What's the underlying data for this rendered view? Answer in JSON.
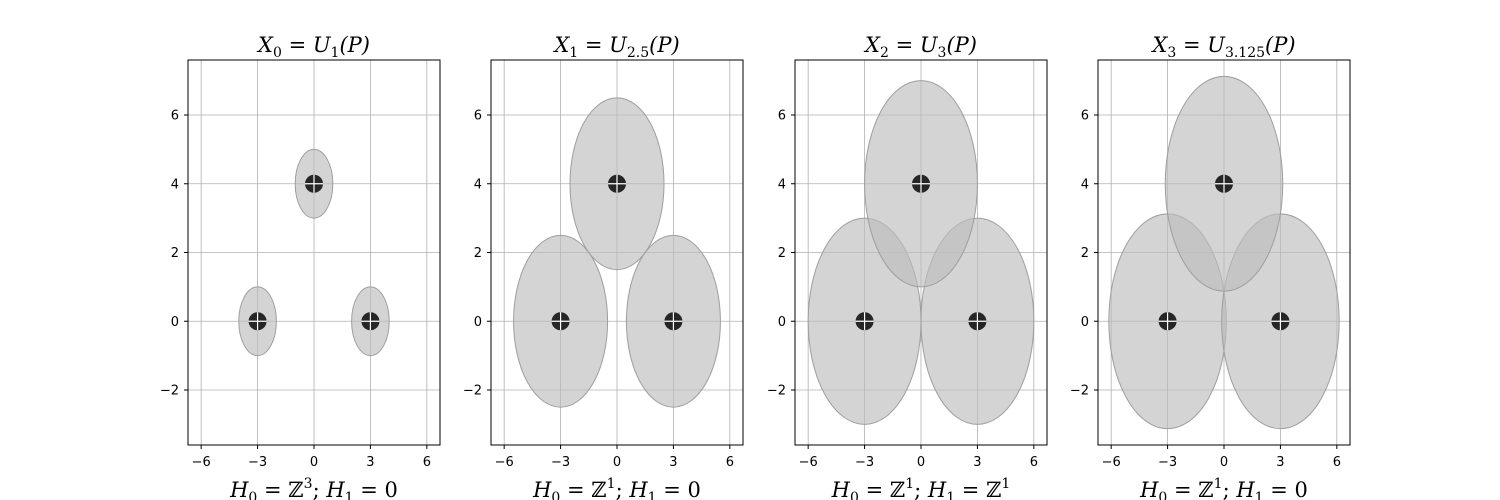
{
  "chart_data": [
    {
      "type": "scatter",
      "title": {
        "var": "X",
        "var_sub": "0",
        "eq": " = ",
        "fn": "U",
        "fn_sub": "1",
        "arg": "(P)"
      },
      "footer": {
        "h0_label": "H",
        "h0_sub": "0",
        "h0_eq": " = ",
        "h0_ring": "ℤ",
        "h0_sup": "3",
        "sep": "; ",
        "h1_label": "H",
        "h1_sub": "1",
        "h1_eq": " = ",
        "h1_value": "0",
        "h1_ring": "",
        "h1_sup": ""
      },
      "points": [
        {
          "x": -3,
          "y": 0
        },
        {
          "x": 3,
          "y": 0
        },
        {
          "x": 0,
          "y": 4
        }
      ],
      "radius": 1,
      "xlim": [
        -6.7,
        6.7
      ],
      "ylim": [
        -3.6,
        7.6
      ],
      "xticks": [
        -6,
        -3,
        0,
        3,
        6
      ],
      "xtick_labels": [
        "−6",
        "−3",
        "0",
        "3",
        "6"
      ],
      "yticks": [
        -2,
        0,
        2,
        4,
        6
      ],
      "ytick_labels": [
        "−2",
        "0",
        "2",
        "4",
        "6"
      ],
      "grid": true
    },
    {
      "type": "scatter",
      "title": {
        "var": "X",
        "var_sub": "1",
        "eq": " = ",
        "fn": "U",
        "fn_sub": "2.5",
        "arg": "(P)"
      },
      "footer": {
        "h0_label": "H",
        "h0_sub": "0",
        "h0_eq": " = ",
        "h0_ring": "ℤ",
        "h0_sup": "1",
        "sep": "; ",
        "h1_label": "H",
        "h1_sub": "1",
        "h1_eq": " = ",
        "h1_value": "0",
        "h1_ring": "",
        "h1_sup": ""
      },
      "points": [
        {
          "x": -3,
          "y": 0
        },
        {
          "x": 3,
          "y": 0
        },
        {
          "x": 0,
          "y": 4
        }
      ],
      "radius": 2.5,
      "xlim": [
        -6.7,
        6.7
      ],
      "ylim": [
        -3.6,
        7.6
      ],
      "xticks": [
        -6,
        -3,
        0,
        3,
        6
      ],
      "xtick_labels": [
        "−6",
        "−3",
        "0",
        "3",
        "6"
      ],
      "yticks": [
        -2,
        0,
        2,
        4,
        6
      ],
      "ytick_labels": [
        "−2",
        "0",
        "2",
        "4",
        "6"
      ],
      "grid": true
    },
    {
      "type": "scatter",
      "title": {
        "var": "X",
        "var_sub": "2",
        "eq": " = ",
        "fn": "U",
        "fn_sub": "3",
        "arg": "(P)"
      },
      "footer": {
        "h0_label": "H",
        "h0_sub": "0",
        "h0_eq": " = ",
        "h0_ring": "ℤ",
        "h0_sup": "1",
        "sep": "; ",
        "h1_label": "H",
        "h1_sub": "1",
        "h1_eq": " = ",
        "h1_value": "",
        "h1_ring": "ℤ",
        "h1_sup": "1"
      },
      "points": [
        {
          "x": -3,
          "y": 0
        },
        {
          "x": 3,
          "y": 0
        },
        {
          "x": 0,
          "y": 4
        }
      ],
      "radius": 3,
      "xlim": [
        -6.7,
        6.7
      ],
      "ylim": [
        -3.6,
        7.6
      ],
      "xticks": [
        -6,
        -3,
        0,
        3,
        6
      ],
      "xtick_labels": [
        "−6",
        "−3",
        "0",
        "3",
        "6"
      ],
      "yticks": [
        -2,
        0,
        2,
        4,
        6
      ],
      "ytick_labels": [
        "−2",
        "0",
        "2",
        "4",
        "6"
      ],
      "grid": true
    },
    {
      "type": "scatter",
      "title": {
        "var": "X",
        "var_sub": "3",
        "eq": " = ",
        "fn": "U",
        "fn_sub": "3.125",
        "arg": "(P)"
      },
      "footer": {
        "h0_label": "H",
        "h0_sub": "0",
        "h0_eq": " = ",
        "h0_ring": "ℤ",
        "h0_sup": "1",
        "sep": "; ",
        "h1_label": "H",
        "h1_sub": "1",
        "h1_eq": " = ",
        "h1_value": "0",
        "h1_ring": "",
        "h1_sup": ""
      },
      "points": [
        {
          "x": -3,
          "y": 0
        },
        {
          "x": 3,
          "y": 0
        },
        {
          "x": 0,
          "y": 4
        }
      ],
      "radius": 3.125,
      "xlim": [
        -6.7,
        6.7
      ],
      "ylim": [
        -3.6,
        7.6
      ],
      "xticks": [
        -6,
        -3,
        0,
        3,
        6
      ],
      "xtick_labels": [
        "−6",
        "−3",
        "0",
        "3",
        "6"
      ],
      "yticks": [
        -2,
        0,
        2,
        4,
        6
      ],
      "ytick_labels": [
        "−2",
        "0",
        "2",
        "4",
        "6"
      ],
      "grid": true
    }
  ],
  "colors": {
    "disk_fill": "#bdbdbd",
    "disk_edge": "#9e9e9e",
    "point_fill": "#262626",
    "point_cross": "#ffffff",
    "grid": "#b0b0b0",
    "frame": "#000000"
  }
}
